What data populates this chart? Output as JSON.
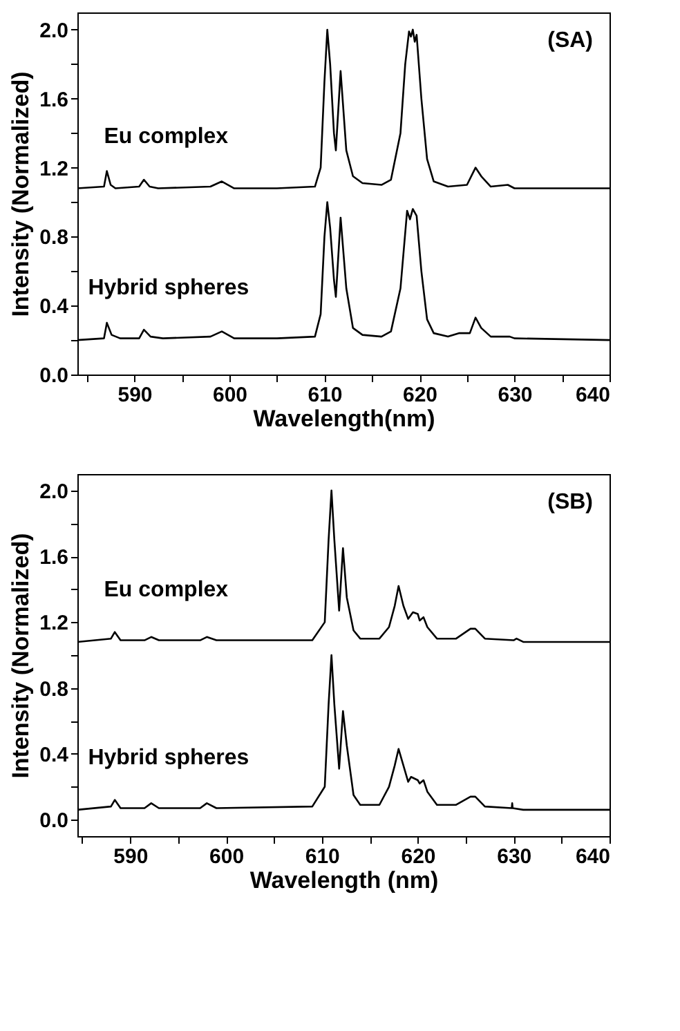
{
  "chart_data": [
    {
      "type": "line",
      "xlabel": "Wavelength(nm)",
      "ylabel": "Intensity (Normalized)",
      "annotations": [
        "(SA)"
      ],
      "xlim": [
        584,
        640
      ],
      "ylim": [
        0,
        2.1
      ],
      "grid": false,
      "legend": false,
      "line_style": "solid",
      "marker": "none",
      "xticks": [
        {
          "value": 585,
          "label": null
        },
        590,
        {
          "value": 595,
          "label": null
        },
        600,
        {
          "value": 605,
          "label": null
        },
        610,
        {
          "value": 615,
          "label": null
        },
        620,
        {
          "value": 625,
          "label": null
        },
        630,
        {
          "value": 635,
          "label": null
        },
        640
      ],
      "yticks": [
        "0.0",
        {
          "value": 0.2,
          "label": null
        },
        0.4,
        {
          "value": 0.6,
          "label": null
        },
        0.8,
        {
          "value": 1.0,
          "label": null
        },
        1.2,
        {
          "value": 1.4,
          "label": null
        },
        1.6,
        {
          "value": 1.8,
          "label": null
        },
        "2.0"
      ],
      "series": [
        {
          "name": "Eu complex",
          "color": "#000000",
          "x": [
            584,
            586.8,
            587.1,
            587.5,
            588,
            590.5,
            591,
            591.6,
            592.5,
            598,
            599.2,
            600.5,
            605,
            609,
            609.6,
            610,
            610.3,
            610.6,
            611,
            611.2,
            611.7,
            612.3,
            613,
            614,
            616,
            617,
            618,
            618.5,
            618.9,
            619.1,
            619.3,
            619.5,
            619.7,
            620.2,
            620.8,
            621.5,
            623,
            625,
            625.9,
            626.5,
            627.5,
            629.3,
            630,
            640
          ],
          "values": [
            1.08,
            1.09,
            1.18,
            1.1,
            1.08,
            1.09,
            1.13,
            1.09,
            1.08,
            1.09,
            1.12,
            1.08,
            1.08,
            1.09,
            1.2,
            1.7,
            2.0,
            1.8,
            1.4,
            1.3,
            1.76,
            1.3,
            1.15,
            1.11,
            1.1,
            1.13,
            1.4,
            1.8,
            1.99,
            1.96,
            2.0,
            1.93,
            1.97,
            1.6,
            1.25,
            1.12,
            1.09,
            1.1,
            1.2,
            1.15,
            1.09,
            1.1,
            1.08,
            1.08
          ]
        },
        {
          "name": "Hybrid spheres",
          "color": "#000000",
          "x": [
            584,
            586.8,
            587.1,
            587.6,
            588.5,
            590.5,
            591,
            591.7,
            593,
            598,
            599.2,
            600.5,
            605,
            609,
            609.6,
            610,
            610.3,
            610.6,
            611,
            611.2,
            611.7,
            612.3,
            613,
            614,
            616,
            617,
            618,
            618.7,
            619,
            619.3,
            619.7,
            620.2,
            620.8,
            621.5,
            623,
            624.2,
            625.3,
            625.9,
            626.5,
            627.5,
            629.5,
            630,
            640
          ],
          "values": [
            0.2,
            0.21,
            0.3,
            0.23,
            0.21,
            0.21,
            0.26,
            0.22,
            0.21,
            0.22,
            0.25,
            0.21,
            0.21,
            0.22,
            0.35,
            0.8,
            1.0,
            0.85,
            0.55,
            0.45,
            0.91,
            0.5,
            0.27,
            0.23,
            0.22,
            0.25,
            0.5,
            0.95,
            0.9,
            0.96,
            0.92,
            0.6,
            0.32,
            0.24,
            0.22,
            0.24,
            0.24,
            0.33,
            0.27,
            0.22,
            0.22,
            0.21,
            0.2
          ]
        }
      ]
    },
    {
      "type": "line",
      "xlabel": "Wavelength (nm)",
      "ylabel": "Intensity (Normalized)",
      "annotations": [
        "(SB)"
      ],
      "xlim": [
        584.5,
        640
      ],
      "ylim": [
        -0.1,
        2.1
      ],
      "grid": false,
      "legend": false,
      "line_style": "solid",
      "marker": "none",
      "xticks": [
        {
          "value": 585,
          "label": null
        },
        590,
        {
          "value": 595,
          "label": null
        },
        600,
        {
          "value": 605,
          "label": null
        },
        610,
        {
          "value": 615,
          "label": null
        },
        620,
        {
          "value": 625,
          "label": null
        },
        630,
        {
          "value": 635,
          "label": null
        },
        640
      ],
      "yticks": [
        "0.0",
        {
          "value": 0.2,
          "label": null
        },
        0.4,
        {
          "value": 0.6,
          "label": null
        },
        0.8,
        {
          "value": 1.0,
          "label": null
        },
        1.2,
        {
          "value": 1.4,
          "label": null
        },
        1.6,
        {
          "value": 1.8,
          "label": null
        },
        "2.0"
      ],
      "series": [
        {
          "name": "Eu complex",
          "color": "#000000",
          "x": [
            584.5,
            588,
            588.4,
            589,
            591.5,
            592.2,
            593,
            597.3,
            598,
            599,
            609,
            610.3,
            610.7,
            611,
            611.3,
            611.8,
            612.2,
            612.6,
            613.3,
            614,
            616,
            617,
            617.6,
            618,
            618.5,
            619,
            619.5,
            620,
            620.2,
            620.6,
            621,
            622,
            624,
            625.5,
            626,
            627,
            630,
            630.3,
            631,
            640
          ],
          "values": [
            1.08,
            1.1,
            1.14,
            1.09,
            1.09,
            1.11,
            1.09,
            1.09,
            1.11,
            1.09,
            1.09,
            1.2,
            1.7,
            2.0,
            1.7,
            1.27,
            1.65,
            1.35,
            1.15,
            1.1,
            1.1,
            1.17,
            1.3,
            1.42,
            1.3,
            1.22,
            1.26,
            1.25,
            1.21,
            1.23,
            1.17,
            1.1,
            1.1,
            1.16,
            1.16,
            1.1,
            1.09,
            1.1,
            1.08,
            1.08
          ]
        },
        {
          "name": "Hybrid spheres",
          "color": "#000000",
          "x": [
            584.5,
            588,
            588.4,
            589,
            591.5,
            592.2,
            593,
            597.3,
            598,
            599,
            609,
            610.3,
            610.7,
            611,
            611.3,
            611.8,
            612.2,
            612.6,
            613.3,
            614,
            616,
            617,
            617.6,
            618,
            618.5,
            619,
            619.3,
            620,
            620.2,
            620.6,
            621,
            622,
            624,
            625.5,
            626,
            627,
            629.8,
            629.85,
            629.9,
            631,
            640
          ],
          "values": [
            0.06,
            0.08,
            0.12,
            0.07,
            0.07,
            0.1,
            0.07,
            0.07,
            0.1,
            0.07,
            0.08,
            0.2,
            0.7,
            1.0,
            0.7,
            0.31,
            0.66,
            0.45,
            0.15,
            0.09,
            0.09,
            0.2,
            0.33,
            0.43,
            0.33,
            0.23,
            0.26,
            0.24,
            0.22,
            0.24,
            0.17,
            0.09,
            0.09,
            0.14,
            0.14,
            0.08,
            0.07,
            0.1,
            0.07,
            0.06,
            0.06
          ]
        }
      ]
    }
  ]
}
